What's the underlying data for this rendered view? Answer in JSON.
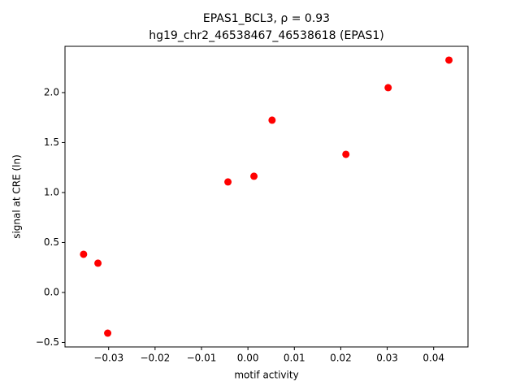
{
  "chart_data": {
    "type": "scatter",
    "title": "EPAS1_BCL3, ρ = 0.93",
    "subtitle": "hg19_chr2_46538467_46538618 (EPAS1)",
    "x_label": "motif activity",
    "y_label": "signal at CRE (ln)",
    "color": "#ff0000",
    "x": [
      -0.0354,
      -0.0323,
      -0.0302,
      -0.0043,
      0.0013,
      0.0052,
      0.0211,
      0.0302,
      0.0433
    ],
    "values": [
      0.382,
      0.293,
      -0.407,
      1.106,
      1.163,
      1.724,
      1.382,
      2.049,
      2.325
    ],
    "xlim": [
      -0.0394,
      0.0474
    ],
    "ylim": [
      -0.545,
      2.463
    ],
    "xticks": [
      {
        "value": -0.03,
        "label": "−0.03"
      },
      {
        "value": -0.02,
        "label": "−0.02"
      },
      {
        "value": -0.01,
        "label": "−0.01"
      },
      {
        "value": 0,
        "label": "0.00"
      },
      0.01,
      0.02,
      0.03,
      0.04
    ],
    "yticks": [
      {
        "value": -0.5,
        "label": "−0.5"
      },
      {
        "value": 0,
        "label": "0.0"
      },
      0.5,
      {
        "value": 1,
        "label": "1.0"
      },
      1.5,
      {
        "value": 2,
        "label": "2.0"
      }
    ],
    "grid": false
  }
}
